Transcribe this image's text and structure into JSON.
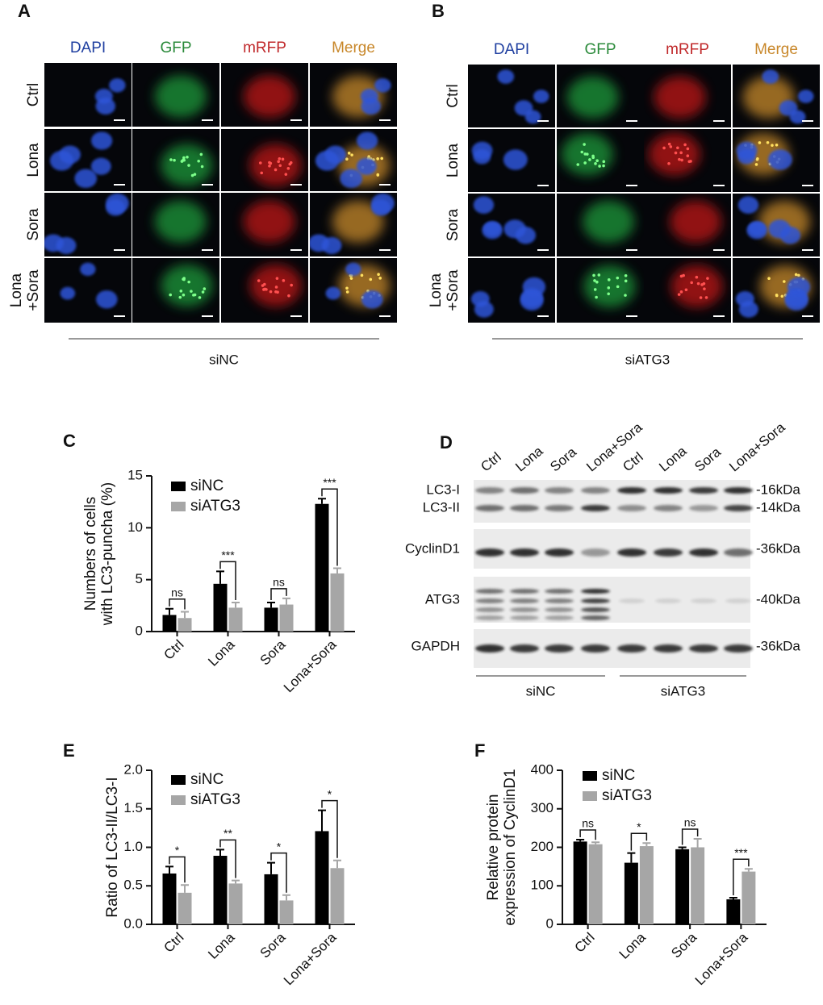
{
  "panels": {
    "A": {
      "label": "A",
      "columns": [
        "DAPI",
        "GFP",
        "mRFP",
        "Merge"
      ],
      "rows": [
        [
          "Ctrl"
        ],
        [
          "Lona"
        ],
        [
          "Sora"
        ],
        [
          "Lona",
          "+Sora"
        ]
      ],
      "group": "siNC"
    },
    "B": {
      "label": "B",
      "columns": [
        "DAPI",
        "GFP",
        "mRFP",
        "Merge"
      ],
      "rows": [
        [
          "Ctrl"
        ],
        [
          "Lona"
        ],
        [
          "Sora"
        ],
        [
          "Lona",
          "+Sora"
        ]
      ],
      "group": "siATG3"
    },
    "D": {
      "label": "D",
      "lanes": [
        "Ctrl",
        "Lona",
        "Sora",
        "Lona+Sora",
        "Ctrl",
        "Lona",
        "Sora",
        "Lona+Sora"
      ],
      "bands": [
        "LC3-I",
        "LC3-II",
        "CyclinD1",
        "ATG3",
        "GAPDH"
      ],
      "sizes": [
        "-16kDa",
        "-14kDa",
        "-36kDa",
        "-40kDa",
        "-36kDa"
      ],
      "groups": [
        "siNC",
        "siATG3"
      ]
    }
  },
  "chart_data": [
    {
      "type": "bar",
      "label": "C",
      "y_label": [
        "Numbers of cells",
        "with LC3-puncha (%)"
      ],
      "categories": [
        "Ctrl",
        "Lona",
        "Sora",
        "Lona+Sora"
      ],
      "series": [
        {
          "name": "siNC",
          "color": "#000000",
          "values": [
            1.6,
            4.6,
            2.3,
            12.3
          ],
          "errors": [
            0.6,
            1.2,
            0.5,
            0.5
          ]
        },
        {
          "name": "siATG3",
          "color": "#a6a6a6",
          "values": [
            1.3,
            2.3,
            2.6,
            5.6
          ],
          "errors": [
            0.6,
            0.5,
            0.6,
            0.5
          ]
        }
      ],
      "annotations": [
        "ns",
        "***",
        "ns",
        "***"
      ],
      "ylim": [
        0,
        15
      ],
      "yticks": [
        0,
        5,
        10,
        15
      ]
    },
    {
      "type": "bar",
      "label": "E",
      "y_label": [
        "Ratio of LC3-II/LC3-I"
      ],
      "categories": [
        "Ctrl",
        "Lona",
        "Sora",
        "Lona+Sora"
      ],
      "series": [
        {
          "name": "siNC",
          "color": "#000000",
          "values": [
            0.66,
            0.89,
            0.65,
            1.21
          ],
          "errors": [
            0.09,
            0.08,
            0.15,
            0.27
          ]
        },
        {
          "name": "siATG3",
          "color": "#a6a6a6",
          "values": [
            0.41,
            0.53,
            0.31,
            0.73
          ],
          "errors": [
            0.1,
            0.04,
            0.07,
            0.1
          ]
        }
      ],
      "annotations": [
        "*",
        "**",
        "*",
        "*"
      ],
      "ylim": [
        0,
        2
      ],
      "yticks": [
        {
          "value": 0,
          "label": "0.0"
        },
        0.5,
        {
          "value": 1,
          "label": "1.0"
        },
        1.5,
        {
          "value": 2,
          "label": "2.0"
        }
      ]
    },
    {
      "type": "bar",
      "label": "F",
      "y_label": [
        "Relative protein",
        "expression of CyclinD1"
      ],
      "categories": [
        "Ctrl",
        "Lona",
        "Sora",
        "Lona+Sora"
      ],
      "series": [
        {
          "name": "siNC",
          "color": "#000000",
          "values": [
            215,
            160,
            195,
            65
          ],
          "errors": [
            5,
            25,
            5,
            4
          ]
        },
        {
          "name": "siATG3",
          "color": "#a6a6a6",
          "values": [
            208,
            203,
            200,
            137
          ],
          "errors": [
            5,
            8,
            22,
            7
          ]
        }
      ],
      "annotations": [
        "ns",
        "*",
        "ns",
        "***"
      ],
      "ylim": [
        0,
        400
      ],
      "yticks": [
        0,
        100,
        200,
        300,
        400
      ]
    }
  ]
}
